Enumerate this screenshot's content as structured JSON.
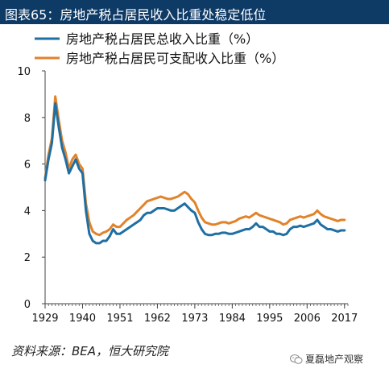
{
  "header": {
    "title": "图表65：房地产税占居民收入比重处稳定低位"
  },
  "source_note": "资料来源：BEA，恒大研究院",
  "watermark": {
    "text": "夏磊地产观察",
    "icon": "wechat-icon"
  },
  "colors": {
    "header_bg": "#0e3a66",
    "series_1": "#1f6fa3",
    "series_2": "#e2832a"
  },
  "chart_data": {
    "type": "line",
    "title": "",
    "xlabel": "",
    "ylabel": "",
    "xlim": [
      1929,
      2018
    ],
    "ylim": [
      0,
      10
    ],
    "y_ticks": [
      "0",
      "2",
      "4",
      "6",
      "8",
      "10"
    ],
    "x_tick_labels": [
      "1929",
      "1940",
      "1951",
      "1962",
      "1973",
      "1984",
      "1995",
      "2006",
      "2017"
    ],
    "x_ticks": [
      1929,
      1940,
      1951,
      1962,
      1973,
      1984,
      1995,
      2006,
      2017
    ],
    "grid": false,
    "legend_position": "top-left",
    "series": [
      {
        "name": "房地产税占居民总收入比重（%）",
        "color": "#1f6fa3",
        "x": [
          1929,
          1930,
          1931,
          1932,
          1933,
          1934,
          1935,
          1936,
          1937,
          1938,
          1939,
          1940,
          1941,
          1942,
          1943,
          1944,
          1945,
          1946,
          1947,
          1948,
          1949,
          1950,
          1951,
          1952,
          1953,
          1954,
          1955,
          1956,
          1957,
          1958,
          1959,
          1960,
          1961,
          1962,
          1963,
          1964,
          1965,
          1966,
          1967,
          1968,
          1969,
          1970,
          1971,
          1972,
          1973,
          1974,
          1975,
          1976,
          1977,
          1978,
          1979,
          1980,
          1981,
          1982,
          1983,
          1984,
          1985,
          1986,
          1987,
          1988,
          1989,
          1990,
          1991,
          1992,
          1993,
          1994,
          1995,
          1996,
          1997,
          1998,
          1999,
          2000,
          2001,
          2002,
          2003,
          2004,
          2005,
          2006,
          2007,
          2008,
          2009,
          2010,
          2011,
          2012,
          2013,
          2014,
          2015,
          2016,
          2017
        ],
        "y": [
          5.3,
          6.2,
          6.9,
          8.6,
          7.6,
          6.7,
          6.2,
          5.6,
          5.9,
          6.2,
          5.8,
          5.6,
          4.0,
          3.0,
          2.7,
          2.6,
          2.6,
          2.7,
          2.7,
          2.9,
          3.2,
          3.0,
          3.0,
          3.1,
          3.2,
          3.3,
          3.4,
          3.5,
          3.6,
          3.8,
          3.9,
          3.9,
          4.0,
          4.1,
          4.1,
          4.1,
          4.05,
          4.0,
          4.0,
          4.1,
          4.2,
          4.3,
          4.15,
          4.0,
          3.9,
          3.5,
          3.2,
          3.0,
          2.95,
          2.95,
          3.0,
          3.0,
          3.05,
          3.05,
          3.0,
          3.0,
          3.05,
          3.1,
          3.15,
          3.2,
          3.2,
          3.3,
          3.45,
          3.3,
          3.3,
          3.2,
          3.1,
          3.1,
          3.0,
          3.0,
          2.95,
          3.0,
          3.2,
          3.3,
          3.3,
          3.35,
          3.3,
          3.35,
          3.4,
          3.45,
          3.6,
          3.4,
          3.3,
          3.2,
          3.2,
          3.15,
          3.1,
          3.15,
          3.15
        ]
      },
      {
        "name": "房地产税占居民可支配收入比重（%）",
        "color": "#e2832a",
        "x": [
          1929,
          1930,
          1931,
          1932,
          1933,
          1934,
          1935,
          1936,
          1937,
          1938,
          1939,
          1940,
          1941,
          1942,
          1943,
          1944,
          1945,
          1946,
          1947,
          1948,
          1949,
          1950,
          1951,
          1952,
          1953,
          1954,
          1955,
          1956,
          1957,
          1958,
          1959,
          1960,
          1961,
          1962,
          1963,
          1964,
          1965,
          1966,
          1967,
          1968,
          1969,
          1970,
          1971,
          1972,
          1973,
          1974,
          1975,
          1976,
          1977,
          1978,
          1979,
          1980,
          1981,
          1982,
          1983,
          1984,
          1985,
          1986,
          1987,
          1988,
          1989,
          1990,
          1991,
          1992,
          1993,
          1994,
          1995,
          1996,
          1997,
          1998,
          1999,
          2000,
          2001,
          2002,
          2003,
          2004,
          2005,
          2006,
          2007,
          2008,
          2009,
          2010,
          2011,
          2012,
          2013,
          2014,
          2015,
          2016,
          2017
        ],
        "y": [
          5.4,
          6.4,
          7.1,
          8.9,
          7.9,
          7.0,
          6.5,
          5.8,
          6.2,
          6.4,
          6.0,
          5.8,
          4.3,
          3.5,
          3.1,
          3.0,
          2.95,
          3.05,
          3.1,
          3.2,
          3.4,
          3.3,
          3.3,
          3.45,
          3.6,
          3.7,
          3.8,
          3.95,
          4.1,
          4.25,
          4.4,
          4.45,
          4.5,
          4.55,
          4.6,
          4.55,
          4.5,
          4.5,
          4.55,
          4.6,
          4.7,
          4.8,
          4.7,
          4.5,
          4.35,
          4.0,
          3.7,
          3.5,
          3.45,
          3.4,
          3.4,
          3.45,
          3.5,
          3.5,
          3.45,
          3.5,
          3.55,
          3.65,
          3.7,
          3.75,
          3.7,
          3.8,
          3.9,
          3.8,
          3.75,
          3.7,
          3.65,
          3.6,
          3.55,
          3.5,
          3.4,
          3.45,
          3.6,
          3.65,
          3.7,
          3.75,
          3.7,
          3.75,
          3.8,
          3.85,
          4.0,
          3.85,
          3.75,
          3.7,
          3.65,
          3.6,
          3.55,
          3.6,
          3.6
        ]
      }
    ]
  }
}
